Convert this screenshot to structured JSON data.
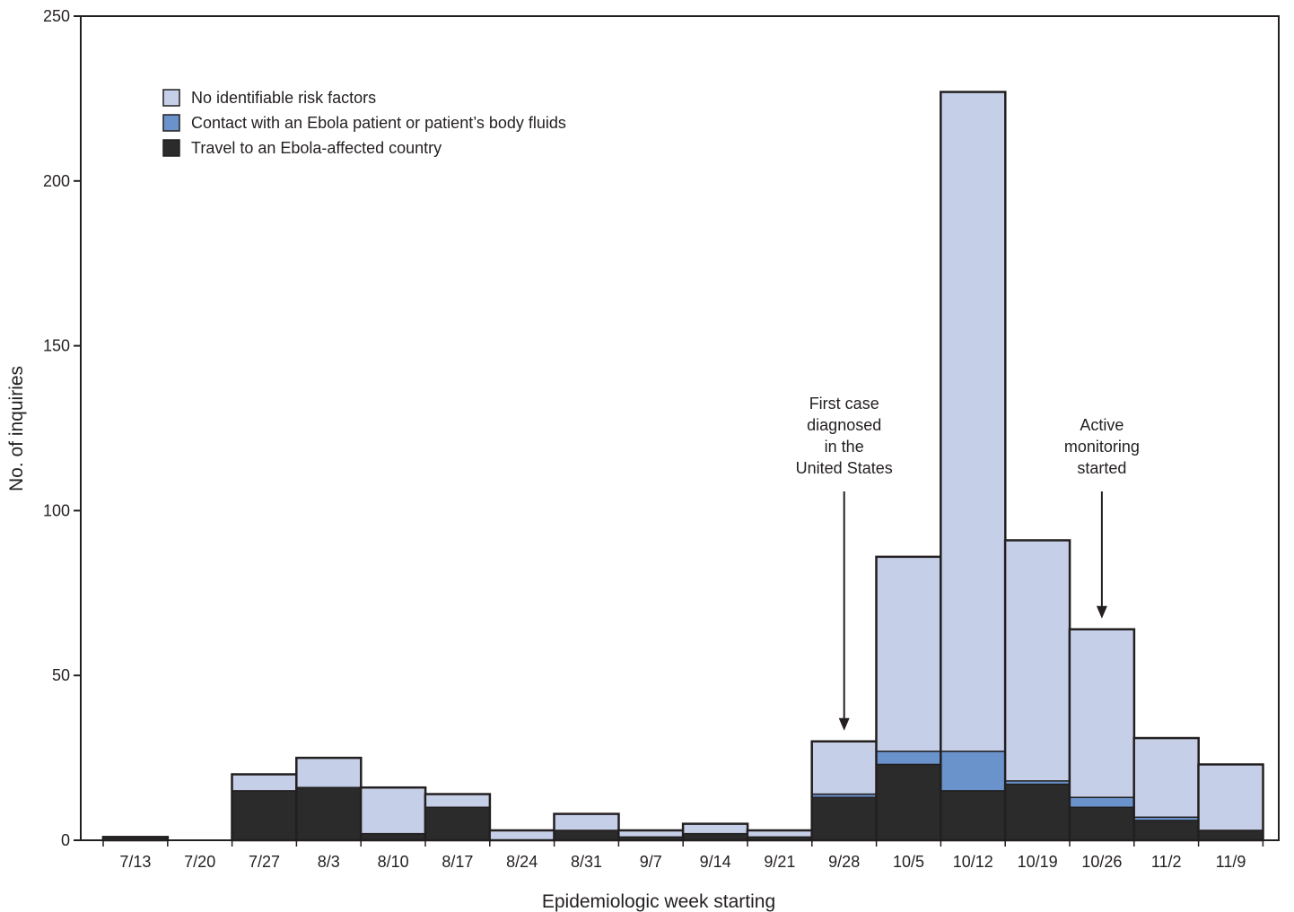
{
  "chart_data": {
    "type": "bar",
    "stacked": true,
    "title": "",
    "xlabel": "Epidemiologic week starting",
    "ylabel": "No. of inquiries",
    "ylim": [
      0,
      250
    ],
    "yticks": [
      0,
      50,
      100,
      150,
      200,
      250
    ],
    "grid": false,
    "legend_position": "top-left",
    "categories": [
      "7/13",
      "7/20",
      "7/27",
      "8/3",
      "8/10",
      "8/17",
      "8/24",
      "8/31",
      "9/7",
      "9/14",
      "9/21",
      "9/28",
      "10/5",
      "10/12",
      "10/19",
      "10/26",
      "11/2",
      "11/9"
    ],
    "series": [
      {
        "name": "Travel to an Ebola-affected country",
        "color": "#2b2b2b",
        "values": [
          1,
          0,
          15,
          16,
          2,
          10,
          0,
          3,
          1,
          2,
          1,
          13,
          23,
          15,
          17,
          10,
          6,
          3
        ]
      },
      {
        "name": "Contact with an Ebola patient or patient’s body fluids",
        "color": "#6a93cb",
        "values": [
          0,
          0,
          0,
          0,
          0,
          0,
          0,
          0,
          0,
          0,
          0,
          1,
          4,
          12,
          1,
          3,
          1,
          0
        ]
      },
      {
        "name": "No identifiable risk factors",
        "color": "#c5d0e8",
        "values": [
          0,
          0,
          5,
          9,
          14,
          4,
          3,
          5,
          2,
          3,
          2,
          16,
          59,
          200,
          73,
          51,
          24,
          20
        ]
      }
    ],
    "legend_order": [
      2,
      1,
      0
    ],
    "annotations": [
      {
        "category": "9/28",
        "lines": [
          "First case",
          "diagnosed",
          "in the",
          "United States"
        ]
      },
      {
        "category": "10/26",
        "lines": [
          "Active",
          "monitoring",
          "started"
        ]
      }
    ]
  }
}
